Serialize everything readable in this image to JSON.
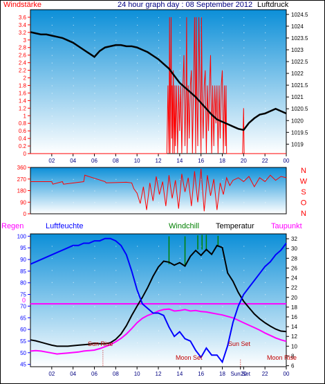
{
  "header": {
    "left_label": "Windstärke",
    "title": "24 hour graph day : 08 September 2012",
    "right_label": "Luftdruck"
  },
  "colors": {
    "wind": "#ff0000",
    "pressure": "#000000",
    "humidity": "#0000ff",
    "dewpoint": "#ff00ff",
    "windchill": "#008000",
    "temperature": "#000000",
    "rain": "#ff00ff",
    "plot_top": "#0c8fd8",
    "plot_bottom": "#ffffff"
  },
  "chart_data": [
    {
      "type": "line",
      "id": "wind_pressure",
      "xlim": [
        0,
        24
      ],
      "x_ticks": [
        "02",
        "04",
        "06",
        "08",
        "10",
        "12",
        "14",
        "16",
        "18",
        "20",
        "22",
        "00"
      ],
      "y_left": {
        "label": "Windstärke",
        "ticks": [
          "0",
          "0.2",
          "0.4",
          "0.6",
          "0.8",
          "1",
          "1.2",
          "1.4",
          "1.6",
          "1.8",
          "2",
          "2.2",
          "2.4",
          "2.6",
          "2.8",
          "3",
          "3.2",
          "3.4",
          "3.6"
        ],
        "range": [
          0,
          3.8
        ]
      },
      "y_right": {
        "label": "Luftdruck",
        "ticks": [
          "1019",
          "1019.5",
          "1020",
          "1020.5",
          "1021",
          "1021.5",
          "1022",
          "1022.5",
          "1023",
          "1023.5",
          "1024",
          "1024.5"
        ],
        "range": [
          1018.6,
          1024.7
        ]
      },
      "series": [
        {
          "name": "Luftdruck",
          "axis": "right",
          "x": [
            0,
            0.5,
            1,
            1.5,
            2,
            2.5,
            3,
            3.5,
            4,
            4.5,
            5,
            5.5,
            6,
            6.5,
            7,
            7.5,
            8,
            8.5,
            9,
            9.5,
            10,
            10.5,
            11,
            11.5,
            12,
            12.5,
            13,
            13.5,
            14,
            14.5,
            15,
            15.5,
            16,
            16.5,
            17,
            17.5,
            18,
            18.5,
            19,
            19.5,
            20,
            20.5,
            21,
            21.5,
            22,
            22.5,
            23,
            23.5,
            24
          ],
          "y": [
            1023.75,
            1023.7,
            1023.65,
            1023.65,
            1023.6,
            1023.55,
            1023.5,
            1023.4,
            1023.3,
            1023.15,
            1023,
            1022.85,
            1022.7,
            1022.95,
            1023.1,
            1023.15,
            1023.2,
            1023.2,
            1023.15,
            1023.15,
            1023.1,
            1023,
            1022.9,
            1022.75,
            1022.6,
            1022.4,
            1022.2,
            1021.9,
            1021.6,
            1021.4,
            1021.2,
            1021,
            1020.75,
            1020.5,
            1020.25,
            1020.05,
            1019.95,
            1019.85,
            1019.75,
            1019.65,
            1019.6,
            1019.9,
            1020.1,
            1020.25,
            1020.3,
            1020.4,
            1020.5,
            1020.4,
            1020.3
          ]
        },
        {
          "name": "Windstärke",
          "axis": "left",
          "x": [
            0,
            12.8,
            12.9,
            13,
            13.05,
            13.1,
            13.15,
            13.2,
            13.25,
            13.3,
            13.35,
            13.4,
            13.5,
            13.55,
            13.6,
            13.7,
            13.8,
            13.9,
            14,
            14.1,
            14.2,
            14.3,
            14.4,
            14.5,
            14.6,
            14.65,
            14.7,
            14.8,
            14.9,
            15,
            15.1,
            15.2,
            15.3,
            15.4,
            15.5,
            15.55,
            15.6,
            15.7,
            15.8,
            15.9,
            16,
            16.05,
            16.1,
            16.2,
            16.3,
            16.4,
            16.5,
            16.6,
            16.7,
            16.8,
            16.9,
            17,
            17.1,
            17.2,
            17.3,
            17.4,
            17.5,
            17.6,
            17.7,
            17.8,
            17.9,
            18,
            18.1,
            18.2,
            18.3,
            18.35,
            18.4,
            19.9,
            20,
            20.05,
            24
          ],
          "y": [
            0,
            0,
            1.8,
            0,
            3.6,
            0,
            1.8,
            3.6,
            0.4,
            1.8,
            0,
            2.2,
            0,
            1.8,
            0.2,
            1.8,
            0,
            1.8,
            0.6,
            1.8,
            0,
            1.8,
            2.6,
            0.2,
            1.8,
            3.6,
            0,
            1.8,
            0.4,
            1.8,
            2.2,
            0,
            1.8,
            3.6,
            0,
            3.6,
            1.8,
            0.2,
            3.6,
            1.8,
            0,
            3.6,
            1.8,
            0.4,
            1.8,
            2.2,
            0,
            1.8,
            0.6,
            1.8,
            2.6,
            0,
            1.8,
            0.2,
            1.8,
            0.8,
            1.8,
            0,
            1.8,
            0.4,
            1.8,
            2.2,
            0,
            1.8,
            0.2,
            1.8,
            0,
            0,
            1.2,
            0,
            0
          ]
        }
      ]
    },
    {
      "type": "line",
      "id": "wind_direction",
      "xlim": [
        0,
        24
      ],
      "y_ticks": [
        "0",
        "90",
        "180",
        "270",
        "360"
      ],
      "y_range": [
        0,
        360
      ],
      "direction_labels": [
        "N",
        "W",
        "S",
        "O",
        "N"
      ],
      "series": [
        {
          "name": "Windrichtung",
          "x": [
            0,
            2,
            2.1,
            3,
            3.1,
            5,
            5.1,
            7,
            7.1,
            9,
            9.5,
            9.7,
            10,
            10.3,
            10.6,
            10.9,
            11.2,
            11.5,
            11.8,
            12.1,
            12.4,
            12.7,
            13,
            13.3,
            13.6,
            13.9,
            14.2,
            14.5,
            14.8,
            15.1,
            15.4,
            15.7,
            16,
            16.3,
            16.6,
            16.9,
            17.2,
            17.5,
            17.8,
            18.1,
            18.4,
            18.7,
            19,
            19.5,
            20,
            20.5,
            21,
            21.5,
            22,
            22.5,
            23,
            23.5,
            24
          ],
          "y": [
            250,
            250,
            230,
            250,
            230,
            250,
            300,
            250,
            240,
            245,
            240,
            195,
            160,
            80,
            210,
            30,
            240,
            100,
            290,
            150,
            250,
            60,
            300,
            120,
            260,
            40,
            310,
            170,
            280,
            60,
            330,
            90,
            350,
            20,
            300,
            140,
            270,
            30,
            240,
            150,
            280,
            220,
            260,
            280,
            250,
            290,
            210,
            280,
            250,
            300,
            260,
            290,
            280
          ]
        }
      ]
    },
    {
      "type": "line",
      "id": "temp_humidity",
      "xlim": [
        0,
        24
      ],
      "labels": {
        "rain": "Regen",
        "humidity": "Luftfeuchte",
        "windchill": "Windchill",
        "temperature": "Temperatur",
        "dewpoint": "Taupunkt",
        "sunrise": "Sun Rise",
        "sunset": "Sun Set",
        "moonset": "Moon Set",
        "moonrise": "Moon Rise",
        "rain_zero": "0"
      },
      "x_ticks": [
        "02",
        "04",
        "06",
        "08",
        "10",
        "12",
        "14",
        "16",
        "18",
        "20",
        "Sun Set",
        "22",
        "00"
      ],
      "y_left": {
        "ticks": [
          "45",
          "50",
          "55",
          "60",
          "65",
          "70",
          "75",
          "80",
          "85",
          "90",
          "95",
          "100"
        ],
        "range": [
          44,
          101
        ]
      },
      "y_right": {
        "ticks": [
          "6",
          "8",
          "10",
          "12",
          "14",
          "16",
          "18",
          "20",
          "22",
          "24",
          "26",
          "28",
          "30",
          "32"
        ],
        "range": [
          5.8,
          33
        ]
      },
      "events": {
        "sunrise": 6.8,
        "sunset": 19.7
      },
      "series": [
        {
          "name": "Luftfeuchte",
          "axis": "left",
          "x": [
            0,
            0.5,
            1,
            1.5,
            2,
            2.5,
            3,
            3.5,
            4,
            4.5,
            5,
            5.5,
            6,
            6.5,
            7,
            7.5,
            8,
            8.5,
            9,
            9.5,
            10,
            10.5,
            11,
            11.5,
            12,
            12.5,
            13,
            13.5,
            14,
            14.5,
            15,
            15.5,
            16,
            16.5,
            17,
            17.5,
            18,
            18.5,
            19,
            19.5,
            20,
            20.5,
            21,
            21.5,
            22,
            22.5,
            23,
            23.5,
            24
          ],
          "y": [
            88,
            89,
            90,
            91,
            92,
            93,
            94,
            95,
            96,
            96,
            97,
            97,
            98,
            98,
            99,
            99,
            98,
            96,
            92,
            85,
            77,
            71,
            69,
            67,
            67,
            66,
            61,
            57,
            59,
            56,
            55,
            51,
            48,
            52,
            49,
            49,
            46,
            53,
            63,
            70,
            75,
            78,
            81,
            84,
            87,
            89,
            92,
            94,
            97
          ]
        },
        {
          "name": "Temperatur",
          "axis": "right",
          "x": [
            0,
            0.5,
            1,
            1.5,
            2,
            2.5,
            3,
            3.5,
            4,
            4.5,
            5,
            5.5,
            6,
            6.5,
            7,
            7.5,
            8,
            8.5,
            9,
            9.5,
            10,
            10.5,
            11,
            11.5,
            12,
            12.5,
            13,
            13.5,
            14,
            14.5,
            15,
            15.5,
            16,
            16.5,
            17,
            17.5,
            18,
            18.5,
            19,
            19.5,
            20,
            20.5,
            21,
            21.5,
            22,
            22.5,
            23,
            23.5,
            24
          ],
          "y": [
            11.3,
            11.1,
            10.8,
            10.5,
            10.2,
            10.0,
            10.0,
            10.0,
            10.1,
            10.2,
            10.3,
            10.4,
            10.6,
            10.5,
            10.5,
            10.7,
            11.4,
            12.5,
            14.2,
            16.3,
            18.2,
            20,
            22,
            24.3,
            26.2,
            27.4,
            27.2,
            26.6,
            27.1,
            26.4,
            28.4,
            29.6,
            28.6,
            29.8,
            28.8,
            30.6,
            30.2,
            25,
            23.3,
            21,
            19.2,
            17.9,
            16.6,
            15.6,
            14.8,
            14.1,
            13.5,
            13.1,
            13.0
          ]
        },
        {
          "name": "Taupunkt",
          "axis": "right",
          "x": [
            0,
            0.5,
            1,
            1.5,
            2,
            2.5,
            3,
            3.5,
            4,
            4.5,
            5,
            5.5,
            6,
            6.5,
            7,
            7.5,
            8,
            8.5,
            9,
            9.5,
            10,
            10.5,
            11,
            11.5,
            12,
            12.5,
            13,
            13.5,
            14,
            14.5,
            15,
            15.5,
            16,
            16.5,
            17,
            17.5,
            18,
            18.5,
            19,
            19.5,
            20,
            20.5,
            21,
            21.5,
            22,
            22.5,
            23,
            23.5,
            24
          ],
          "y": [
            9.0,
            9.1,
            9.0,
            8.8,
            8.6,
            8.4,
            8.5,
            8.6,
            8.7,
            8.8,
            9.0,
            9.1,
            9.2,
            9.5,
            9.9,
            10.3,
            10.9,
            11.6,
            12.5,
            13.6,
            14.8,
            15.7,
            16.3,
            16.7,
            17.2,
            17.5,
            17.6,
            17.2,
            17.3,
            17.5,
            17.2,
            17.3,
            17.1,
            17.0,
            16.8,
            16.6,
            16.4,
            16.1,
            15.8,
            15.3,
            14.8,
            14.3,
            13.8,
            13.3,
            12.7,
            12.2,
            11.7,
            11.3,
            11.0
          ]
        },
        {
          "name": "Windchill",
          "axis": "right",
          "spikes": [
            {
              "x": 13.0,
              "y0": 26.8,
              "y1": 32.5
            },
            {
              "x": 14.5,
              "y0": 26.6,
              "y1": 32.5
            },
            {
              "x": 15.7,
              "y0": 29.8,
              "y1": 32.7
            },
            {
              "x": 16.1,
              "y0": 29.8,
              "y1": 32.8
            },
            {
              "x": 16.5,
              "y0": 29.7,
              "y1": 32.8
            },
            {
              "x": 17.6,
              "y0": 30.4,
              "y1": 32.6
            }
          ]
        },
        {
          "name": "Regen",
          "axis": "left",
          "x": [
            0,
            24
          ],
          "y": [
            71,
            71
          ]
        }
      ]
    }
  ]
}
